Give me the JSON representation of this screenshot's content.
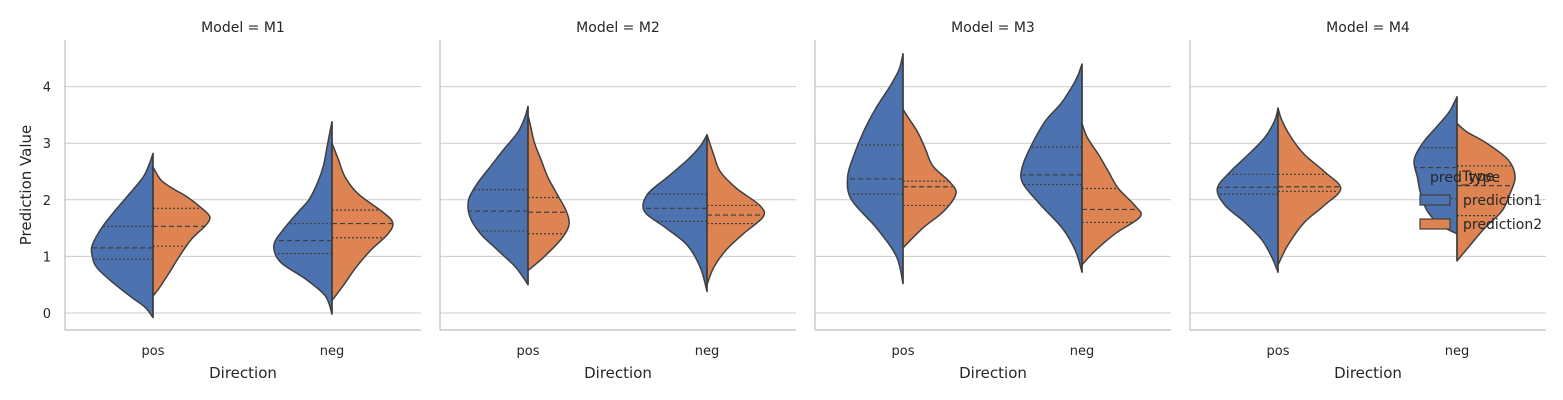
{
  "chart_data": {
    "type": "violin",
    "ylabel": "Prediction Value",
    "xlabel": "Direction",
    "categories": [
      "pos",
      "neg"
    ],
    "yticks": [
      0,
      1,
      2,
      3,
      4
    ],
    "ylim": [
      -0.3,
      4.8
    ],
    "grid": true,
    "split": true,
    "legend": {
      "title": "Type",
      "overlap_text": "pred_type",
      "placement": "right",
      "entries": [
        "prediction1",
        "prediction2"
      ]
    },
    "series_colors": [
      "#4c72b0",
      "#dd8452"
    ],
    "panels": [
      {
        "title": "Model = M1",
        "groups": [
          {
            "category": "pos",
            "prediction1": {
              "min": -0.08,
              "max": 2.82,
              "q1": 0.95,
              "median": 1.15,
              "q3": 1.53,
              "profile": [
                [
                  -0.08,
                  0.0
                ],
                [
                  0.1,
                  0.12
                ],
                [
                  0.3,
                  0.35
                ],
                [
                  0.55,
                  0.62
                ],
                [
                  0.8,
                  0.85
                ],
                [
                  1.0,
                  0.92
                ],
                [
                  1.2,
                  0.92
                ],
                [
                  1.5,
                  0.78
                ],
                [
                  1.8,
                  0.58
                ],
                [
                  2.1,
                  0.36
                ],
                [
                  2.4,
                  0.15
                ],
                [
                  2.65,
                  0.05
                ],
                [
                  2.82,
                  0.0
                ]
              ]
            },
            "prediction2": {
              "min": 0.3,
              "max": 2.58,
              "q1": 1.18,
              "median": 1.53,
              "q3": 1.85,
              "profile": [
                [
                  0.3,
                  0.0
                ],
                [
                  0.45,
                  0.1
                ],
                [
                  0.7,
                  0.24
                ],
                [
                  1.0,
                  0.4
                ],
                [
                  1.3,
                  0.58
                ],
                [
                  1.55,
                  0.8
                ],
                [
                  1.7,
                  0.86
                ],
                [
                  1.85,
                  0.74
                ],
                [
                  2.05,
                  0.52
                ],
                [
                  2.2,
                  0.3
                ],
                [
                  2.35,
                  0.12
                ],
                [
                  2.58,
                  0.0
                ]
              ]
            }
          },
          {
            "category": "neg",
            "prediction1": {
              "min": -0.02,
              "max": 3.38,
              "q1": 1.05,
              "median": 1.28,
              "q3": 1.58,
              "profile": [
                [
                  -0.02,
                  0.0
                ],
                [
                  0.3,
                  0.1
                ],
                [
                  0.6,
                  0.4
                ],
                [
                  0.9,
                  0.78
                ],
                [
                  1.2,
                  0.88
                ],
                [
                  1.5,
                  0.72
                ],
                [
                  1.8,
                  0.5
                ],
                [
                  2.0,
                  0.35
                ],
                [
                  2.3,
                  0.22
                ],
                [
                  2.6,
                  0.13
                ],
                [
                  2.9,
                  0.08
                ],
                [
                  3.15,
                  0.04
                ],
                [
                  3.38,
                  0.0
                ]
              ]
            },
            "prediction2": {
              "min": 0.22,
              "max": 3.0,
              "q1": 1.33,
              "median": 1.58,
              "q3": 1.82,
              "profile": [
                [
                  0.22,
                  0.0
                ],
                [
                  0.5,
                  0.18
                ],
                [
                  0.8,
                  0.36
                ],
                [
                  1.1,
                  0.58
                ],
                [
                  1.4,
                  0.85
                ],
                [
                  1.6,
                  0.92
                ],
                [
                  1.8,
                  0.75
                ],
                [
                  2.1,
                  0.4
                ],
                [
                  2.4,
                  0.2
                ],
                [
                  2.7,
                  0.1
                ],
                [
                  3.0,
                  0.0
                ]
              ]
            }
          }
        ]
      },
      {
        "title": "Model = M2",
        "groups": [
          {
            "category": "pos",
            "prediction1": {
              "min": 0.5,
              "max": 3.65,
              "q1": 1.45,
              "median": 1.8,
              "q3": 2.18,
              "profile": [
                [
                  0.5,
                  0.0
                ],
                [
                  0.8,
                  0.18
                ],
                [
                  1.1,
                  0.45
                ],
                [
                  1.4,
                  0.72
                ],
                [
                  1.7,
                  0.88
                ],
                [
                  2.0,
                  0.9
                ],
                [
                  2.3,
                  0.76
                ],
                [
                  2.6,
                  0.56
                ],
                [
                  2.9,
                  0.36
                ],
                [
                  3.2,
                  0.15
                ],
                [
                  3.45,
                  0.05
                ],
                [
                  3.65,
                  0.0
                ]
              ]
            },
            "prediction2": {
              "min": 0.75,
              "max": 3.5,
              "q1": 1.4,
              "median": 1.78,
              "q3": 2.04,
              "profile": [
                [
                  0.75,
                  0.0
                ],
                [
                  1.0,
                  0.25
                ],
                [
                  1.3,
                  0.5
                ],
                [
                  1.55,
                  0.62
                ],
                [
                  1.8,
                  0.58
                ],
                [
                  2.1,
                  0.44
                ],
                [
                  2.4,
                  0.3
                ],
                [
                  2.7,
                  0.2
                ],
                [
                  3.0,
                  0.1
                ],
                [
                  3.3,
                  0.04
                ],
                [
                  3.5,
                  0.0
                ]
              ]
            }
          },
          {
            "category": "neg",
            "prediction1": {
              "min": 0.38,
              "max": 3.15,
              "q1": 1.62,
              "median": 1.85,
              "q3": 2.1,
              "profile": [
                [
                  0.38,
                  0.0
                ],
                [
                  0.8,
                  0.1
                ],
                [
                  1.2,
                  0.3
                ],
                [
                  1.5,
                  0.62
                ],
                [
                  1.8,
                  0.95
                ],
                [
                  2.1,
                  0.9
                ],
                [
                  2.4,
                  0.6
                ],
                [
                  2.7,
                  0.3
                ],
                [
                  2.95,
                  0.1
                ],
                [
                  3.15,
                  0.0
                ]
              ]
            },
            "prediction2": {
              "min": 0.5,
              "max": 3.15,
              "q1": 1.58,
              "median": 1.73,
              "q3": 1.9,
              "profile": [
                [
                  0.5,
                  0.0
                ],
                [
                  0.8,
                  0.1
                ],
                [
                  1.1,
                  0.28
                ],
                [
                  1.4,
                  0.55
                ],
                [
                  1.7,
                  0.85
                ],
                [
                  1.9,
                  0.8
                ],
                [
                  2.2,
                  0.45
                ],
                [
                  2.5,
                  0.2
                ],
                [
                  2.8,
                  0.1
                ],
                [
                  3.15,
                  0.0
                ]
              ]
            }
          }
        ]
      },
      {
        "title": "Model = M3",
        "groups": [
          {
            "category": "pos",
            "prediction1": {
              "min": 0.52,
              "max": 4.58,
              "q1": 2.1,
              "median": 2.37,
              "q3": 2.97,
              "profile": [
                [
                  0.52,
                  0.0
                ],
                [
                  1.0,
                  0.1
                ],
                [
                  1.5,
                  0.4
                ],
                [
                  2.0,
                  0.78
                ],
                [
                  2.4,
                  0.84
                ],
                [
                  2.8,
                  0.74
                ],
                [
                  3.2,
                  0.6
                ],
                [
                  3.6,
                  0.42
                ],
                [
                  4.0,
                  0.2
                ],
                [
                  4.3,
                  0.06
                ],
                [
                  4.58,
                  0.0
                ]
              ]
            },
            "prediction2": {
              "min": 1.15,
              "max": 3.6,
              "q1": 1.9,
              "median": 2.23,
              "q3": 2.33,
              "profile": [
                [
                  1.15,
                  0.0
                ],
                [
                  1.5,
                  0.3
                ],
                [
                  1.8,
                  0.62
                ],
                [
                  2.1,
                  0.8
                ],
                [
                  2.3,
                  0.72
                ],
                [
                  2.6,
                  0.45
                ],
                [
                  2.9,
                  0.34
                ],
                [
                  3.2,
                  0.22
                ],
                [
                  3.45,
                  0.08
                ],
                [
                  3.6,
                  0.0
                ]
              ]
            }
          },
          {
            "category": "neg",
            "prediction1": {
              "min": 0.72,
              "max": 4.4,
              "q1": 2.27,
              "median": 2.44,
              "q3": 2.93,
              "profile": [
                [
                  0.72,
                  0.0
                ],
                [
                  1.1,
                  0.1
                ],
                [
                  1.5,
                  0.3
                ],
                [
                  1.9,
                  0.62
                ],
                [
                  2.3,
                  0.9
                ],
                [
                  2.6,
                  0.9
                ],
                [
                  3.0,
                  0.75
                ],
                [
                  3.4,
                  0.55
                ],
                [
                  3.7,
                  0.32
                ],
                [
                  4.0,
                  0.15
                ],
                [
                  4.2,
                  0.06
                ],
                [
                  4.4,
                  0.0
                ]
              ]
            },
            "prediction2": {
              "min": 0.85,
              "max": 3.35,
              "q1": 1.6,
              "median": 1.83,
              "q3": 2.2,
              "profile": [
                [
                  0.85,
                  0.0
                ],
                [
                  1.1,
                  0.2
                ],
                [
                  1.4,
                  0.5
                ],
                [
                  1.7,
                  0.88
                ],
                [
                  1.9,
                  0.8
                ],
                [
                  2.2,
                  0.55
                ],
                [
                  2.5,
                  0.4
                ],
                [
                  2.8,
                  0.25
                ],
                [
                  3.1,
                  0.08
                ],
                [
                  3.35,
                  0.0
                ]
              ]
            }
          }
        ]
      },
      {
        "title": "Model = M4",
        "groups": [
          {
            "category": "pos",
            "prediction1": {
              "min": 0.72,
              "max": 3.62,
              "q1": 2.1,
              "median": 2.22,
              "q3": 2.45,
              "profile": [
                [
                  0.72,
                  0.0
                ],
                [
                  1.0,
                  0.1
                ],
                [
                  1.3,
                  0.25
                ],
                [
                  1.6,
                  0.5
                ],
                [
                  1.9,
                  0.8
                ],
                [
                  2.2,
                  0.92
                ],
                [
                  2.5,
                  0.72
                ],
                [
                  2.8,
                  0.45
                ],
                [
                  3.1,
                  0.2
                ],
                [
                  3.4,
                  0.05
                ],
                [
                  3.62,
                  0.0
                ]
              ]
            },
            "prediction2": {
              "min": 0.85,
              "max": 3.62,
              "q1": 2.15,
              "median": 2.23,
              "q3": 2.45,
              "profile": [
                [
                  0.85,
                  0.0
                ],
                [
                  1.2,
                  0.15
                ],
                [
                  1.6,
                  0.4
                ],
                [
                  1.9,
                  0.7
                ],
                [
                  2.2,
                  0.95
                ],
                [
                  2.5,
                  0.7
                ],
                [
                  2.8,
                  0.4
                ],
                [
                  3.1,
                  0.2
                ],
                [
                  3.4,
                  0.06
                ],
                [
                  3.62,
                  0.0
                ]
              ]
            }
          },
          {
            "category": "neg",
            "prediction1": {
              "min": 1.4,
              "max": 3.82,
              "q1": 2.02,
              "median": 2.57,
              "q3": 2.92,
              "profile": [
                [
                  1.4,
                  0.0
                ],
                [
                  1.55,
                  0.25
                ],
                [
                  1.8,
                  0.45
                ],
                [
                  2.1,
                  0.55
                ],
                [
                  2.4,
                  0.6
                ],
                [
                  2.7,
                  0.65
                ],
                [
                  3.0,
                  0.52
                ],
                [
                  3.3,
                  0.3
                ],
                [
                  3.55,
                  0.12
                ],
                [
                  3.82,
                  0.0
                ]
              ]
            },
            "prediction2": {
              "min": 0.92,
              "max": 3.35,
              "q1": 1.72,
              "median": 2.25,
              "q3": 2.6,
              "profile": [
                [
                  0.92,
                  0.0
                ],
                [
                  1.2,
                  0.2
                ],
                [
                  1.5,
                  0.42
                ],
                [
                  1.8,
                  0.68
                ],
                [
                  2.1,
                  0.8
                ],
                [
                  2.4,
                  0.88
                ],
                [
                  2.7,
                  0.78
                ],
                [
                  3.0,
                  0.45
                ],
                [
                  3.2,
                  0.15
                ],
                [
                  3.35,
                  0.0
                ]
              ]
            }
          }
        ]
      }
    ]
  }
}
